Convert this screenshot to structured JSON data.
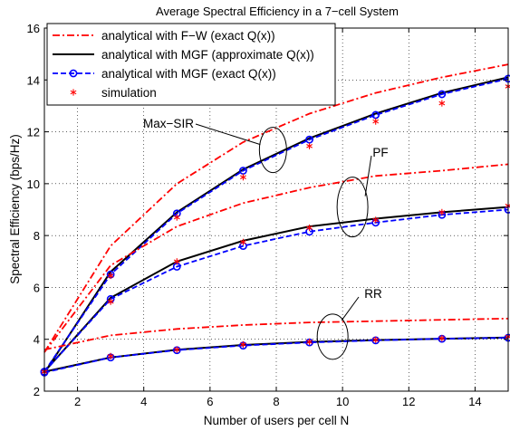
{
  "chart_data": {
    "type": "line",
    "title": "Average Spectral Efficiency in a 7−cell System",
    "xlabel": "Number of users per cell N",
    "ylabel": "Spectral Efficiency (bps/Hz)",
    "xlim": [
      1,
      15
    ],
    "ylim": [
      2,
      16
    ],
    "xticks": [
      2,
      4,
      6,
      8,
      10,
      12,
      14
    ],
    "yticks": [
      2,
      4,
      6,
      8,
      10,
      12,
      14,
      16
    ],
    "grid": true,
    "legend_position": "top-left",
    "colors": {
      "red": "#ff0000",
      "black": "#000000",
      "blue": "#0000ff"
    },
    "legend": [
      {
        "label": "analytical with F−W (exact Q(x))",
        "style": "dashdot",
        "color": "#ff0000",
        "marker": "none"
      },
      {
        "label": "analytical with MGF (approximate Q(x))",
        "style": "solid",
        "color": "#000000",
        "marker": "none"
      },
      {
        "label": "analytical with MGF (exact Q(x))",
        "style": "dashed",
        "color": "#0000ff",
        "marker": "circle"
      },
      {
        "label": "simulation",
        "style": "none",
        "color": "#ff0000",
        "marker": "star"
      }
    ],
    "annotations": [
      {
        "text": "Max−SIR"
      },
      {
        "text": "PF"
      },
      {
        "text": "RR"
      }
    ],
    "x": [
      1,
      3,
      5,
      7,
      9,
      11,
      13,
      15
    ],
    "series": [
      {
        "name": "analytical with F−W (exact Q(x))",
        "group": "Max−SIR",
        "style": "dashdot",
        "color": "#ff0000",
        "values": [
          3.5,
          7.6,
          10.0,
          11.6,
          12.7,
          13.5,
          14.1,
          14.6
        ]
      },
      {
        "name": "analytical with MGF (approximate Q(x))",
        "group": "Max−SIR",
        "style": "solid",
        "color": "#000000",
        "values": [
          2.7,
          6.6,
          8.9,
          10.55,
          11.75,
          12.7,
          13.5,
          14.1
        ]
      },
      {
        "name": "analytical with MGF (exact Q(x))",
        "group": "Max−SIR",
        "style": "dashed",
        "color": "#0000ff",
        "marker": "circle",
        "values": [
          2.75,
          6.5,
          8.85,
          10.5,
          11.7,
          12.65,
          13.45,
          14.05
        ]
      },
      {
        "name": "simulation",
        "group": "Max−SIR",
        "style": "none",
        "color": "#ff0000",
        "marker": "star",
        "values": [
          2.75,
          6.45,
          8.7,
          10.25,
          11.45,
          12.4,
          13.1,
          13.75
        ]
      },
      {
        "name": "analytical with F−W (exact Q(x))",
        "group": "PF",
        "style": "dashdot",
        "color": "#ff0000",
        "values": [
          3.5,
          6.85,
          8.35,
          9.25,
          9.85,
          10.3,
          10.5,
          10.75
        ]
      },
      {
        "name": "analytical with MGF (approximate Q(x))",
        "group": "PF",
        "style": "solid",
        "color": "#000000",
        "values": [
          2.75,
          5.6,
          7.0,
          7.8,
          8.35,
          8.65,
          8.9,
          9.1
        ]
      },
      {
        "name": "analytical with MGF (exact Q(x))",
        "group": "PF",
        "style": "dashed",
        "color": "#0000ff",
        "marker": "circle",
        "values": [
          2.75,
          5.55,
          6.8,
          7.6,
          8.15,
          8.5,
          8.8,
          9.0
        ]
      },
      {
        "name": "simulation",
        "group": "PF",
        "style": "none",
        "color": "#ff0000",
        "marker": "star",
        "values": [
          2.75,
          5.45,
          7.0,
          7.75,
          8.3,
          8.6,
          8.9,
          9.15
        ]
      },
      {
        "name": "analytical with F−W (exact Q(x))",
        "group": "RR",
        "style": "dashdot",
        "color": "#ff0000",
        "values": [
          3.6,
          4.15,
          4.4,
          4.55,
          4.65,
          4.7,
          4.75,
          4.8
        ]
      },
      {
        "name": "analytical with MGF (approximate Q(x))",
        "group": "RR",
        "style": "solid",
        "color": "#000000",
        "values": [
          2.75,
          3.3,
          3.6,
          3.78,
          3.9,
          3.97,
          4.02,
          4.07
        ]
      },
      {
        "name": "analytical with MGF (exact Q(x))",
        "group": "RR",
        "style": "dashed",
        "color": "#0000ff",
        "marker": "circle",
        "values": [
          2.72,
          3.3,
          3.58,
          3.76,
          3.88,
          3.96,
          4.02,
          4.06
        ]
      },
      {
        "name": "simulation",
        "group": "RR",
        "style": "none",
        "color": "#ff0000",
        "marker": "star",
        "values": [
          2.75,
          3.35,
          3.6,
          3.8,
          3.9,
          3.98,
          4.04,
          4.1
        ]
      }
    ]
  }
}
